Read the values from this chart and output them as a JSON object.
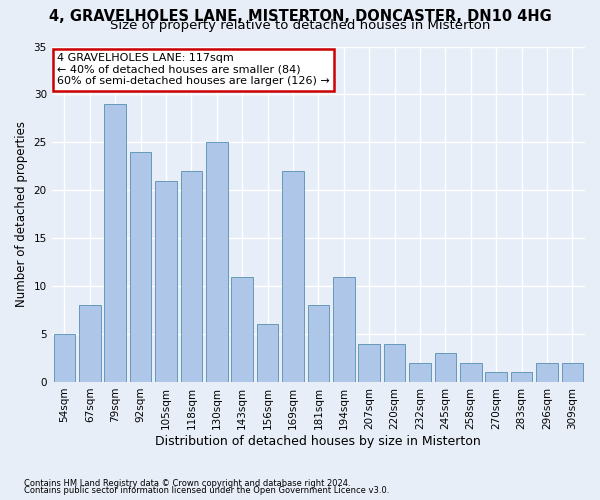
{
  "title1": "4, GRAVELHOLES LANE, MISTERTON, DONCASTER, DN10 4HG",
  "title2": "Size of property relative to detached houses in Misterton",
  "xlabel": "Distribution of detached houses by size in Misterton",
  "ylabel": "Number of detached properties",
  "categories": [
    "54sqm",
    "67sqm",
    "79sqm",
    "92sqm",
    "105sqm",
    "118sqm",
    "130sqm",
    "143sqm",
    "156sqm",
    "169sqm",
    "181sqm",
    "194sqm",
    "207sqm",
    "220sqm",
    "232sqm",
    "245sqm",
    "258sqm",
    "270sqm",
    "283sqm",
    "296sqm",
    "309sqm"
  ],
  "values": [
    5,
    8,
    29,
    24,
    21,
    22,
    25,
    11,
    6,
    22,
    8,
    11,
    4,
    4,
    2,
    3,
    2,
    1,
    1,
    2,
    2
  ],
  "bar_color": "#aec6e8",
  "bar_edge_color": "#6699bb",
  "ylim": [
    0,
    35
  ],
  "yticks": [
    0,
    5,
    10,
    15,
    20,
    25,
    30,
    35
  ],
  "annotation_box_text": "4 GRAVELHOLES LANE: 117sqm\n← 40% of detached houses are smaller (84)\n60% of semi-detached houses are larger (126) →",
  "annotation_box_color": "#ffffff",
  "annotation_box_edgecolor": "#cc0000",
  "footnote1": "Contains HM Land Registry data © Crown copyright and database right 2024.",
  "footnote2": "Contains public sector information licensed under the Open Government Licence v3.0.",
  "background_color": "#e8eef8",
  "grid_color": "#ffffff",
  "title1_fontsize": 10.5,
  "title2_fontsize": 9.5,
  "tick_fontsize": 7.5,
  "ylabel_fontsize": 8.5,
  "xlabel_fontsize": 9,
  "footnote_fontsize": 6,
  "annotation_fontsize": 8
}
